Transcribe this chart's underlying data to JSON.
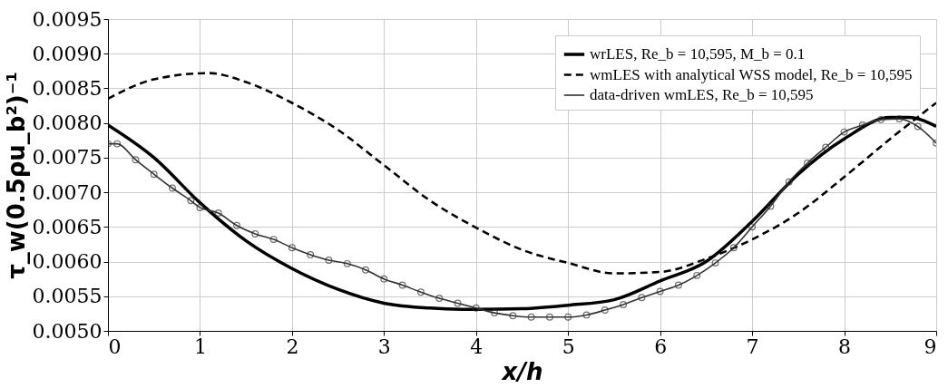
{
  "chart_data": {
    "type": "line",
    "xlabel": "x/h",
    "ylabel": "τ_w(0.5ρu_b²)⁻¹",
    "xlim": [
      0,
      9
    ],
    "xticks": [
      0,
      1,
      2,
      3,
      4,
      5,
      6,
      7,
      8,
      9
    ],
    "ylim": [
      0.005,
      0.0095
    ],
    "yticks": [
      {
        "value": 0.005,
        "label": "0.0050"
      },
      0.0055,
      {
        "value": 0.006,
        "label": "0.0060"
      },
      0.0065,
      {
        "value": 0.007,
        "label": "0.0070"
      },
      0.0075,
      {
        "value": 0.008,
        "label": "0.0080"
      },
      0.0085,
      {
        "value": 0.009,
        "label": "0.0090"
      },
      0.0095
    ],
    "grid": true,
    "legend": "top right",
    "series": [
      {
        "name": "wrLES, Re_b = 10,595, M_b = 0.1",
        "color": "#000000",
        "line_style": "solid",
        "marker": "none",
        "x": [
          0,
          0.5,
          1,
          1.5,
          2,
          2.5,
          3,
          3.5,
          4,
          4.5,
          5,
          5.5,
          6,
          6.5,
          7,
          7.5,
          8,
          8.5,
          8.7,
          9
        ],
        "values": [
          0.00797,
          0.0075,
          0.00685,
          0.0063,
          0.0059,
          0.0056,
          0.0054,
          0.00533,
          0.00531,
          0.00532,
          0.00537,
          0.00545,
          0.00572,
          0.006,
          0.00658,
          0.00726,
          0.00777,
          0.00808,
          0.00808,
          0.00795
        ]
      },
      {
        "name": "wmLES with analytical WSS model, Re_b = 10,595",
        "color": "#000000",
        "line_style": "dashed",
        "marker": "none",
        "x": [
          0,
          0.5,
          1.1,
          1.5,
          2,
          2.5,
          3,
          3.5,
          4,
          4.5,
          5,
          5.5,
          6,
          6.5,
          7,
          7.5,
          8,
          8.5,
          9
        ],
        "values": [
          0.00835,
          0.00863,
          0.00872,
          0.00859,
          0.00829,
          0.0079,
          0.00739,
          0.00688,
          0.00649,
          0.00617,
          0.00598,
          0.00583,
          0.00585,
          0.00604,
          0.00632,
          0.0067,
          0.00722,
          0.00777,
          0.00829
        ]
      },
      {
        "name": "data-driven wmLES, Re_b = 10,595",
        "color": "#333333",
        "line_style": "solid",
        "marker": "circle",
        "x": [
          0,
          0.1,
          0.3,
          0.5,
          0.7,
          0.9,
          1.0,
          1.2,
          1.4,
          1.6,
          1.8,
          2.0,
          2.2,
          2.4,
          2.6,
          2.8,
          3.0,
          3.2,
          3.4,
          3.6,
          3.8,
          4.0,
          4.2,
          4.4,
          4.6,
          4.8,
          5.0,
          5.2,
          5.4,
          5.6,
          5.8,
          6.0,
          6.2,
          6.4,
          6.6,
          6.8,
          7.0,
          7.2,
          7.4,
          7.6,
          7.8,
          8.0,
          8.2,
          8.4,
          8.6,
          8.8,
          9.0
        ],
        "values": [
          0.0077,
          0.0077,
          0.00747,
          0.00726,
          0.00706,
          0.00688,
          0.00678,
          0.0067,
          0.00652,
          0.0064,
          0.00632,
          0.0062,
          0.0061,
          0.00602,
          0.00597,
          0.00588,
          0.00575,
          0.00566,
          0.00556,
          0.00547,
          0.0054,
          0.00533,
          0.00526,
          0.00522,
          0.0052,
          0.0052,
          0.0052,
          0.00523,
          0.0053,
          0.00538,
          0.00548,
          0.00557,
          0.00566,
          0.0058,
          0.00598,
          0.0062,
          0.0065,
          0.0068,
          0.00715,
          0.00742,
          0.00765,
          0.00787,
          0.00797,
          0.00805,
          0.00806,
          0.00795,
          0.00771
        ]
      }
    ]
  }
}
